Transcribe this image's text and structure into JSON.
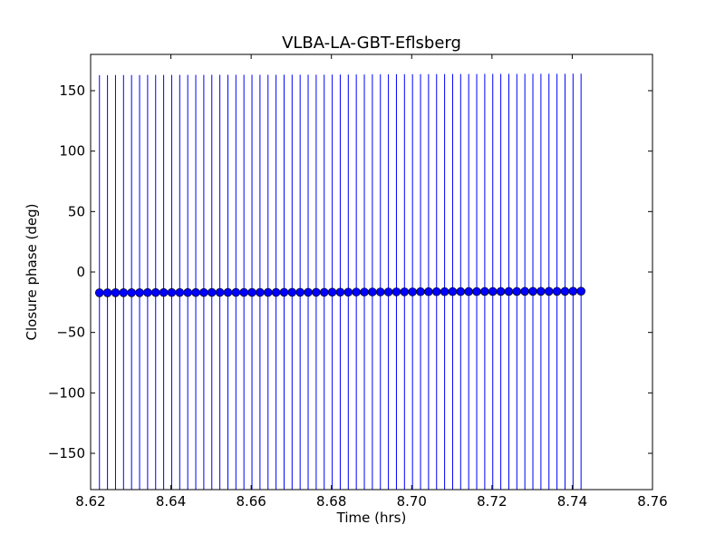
{
  "chart_data": {
    "type": "scatter",
    "title": "VLBA-LA-GBT-Eflsberg",
    "xlabel": "Time (hrs)",
    "ylabel": "Closure phase (deg)",
    "xlim": [
      8.62,
      8.76
    ],
    "ylim": [
      -180,
      180
    ],
    "xticks": [
      8.62,
      8.64,
      8.66,
      8.68,
      8.7,
      8.72,
      8.74,
      8.76
    ],
    "xtick_labels": [
      "8.62",
      "8.64",
      "8.66",
      "8.68",
      "8.70",
      "8.72",
      "8.74",
      "8.76"
    ],
    "yticks": [
      -150,
      -100,
      -50,
      0,
      50,
      100,
      150
    ],
    "ytick_labels": [
      "−150",
      "−100",
      "−50",
      "0",
      "50",
      "100",
      "150"
    ],
    "grid": false,
    "marker_color": "#0000ff",
    "series": [
      {
        "x": [
          8.6222,
          8.6242,
          8.6262,
          8.6282,
          8.6302,
          8.6322,
          8.6342,
          8.6362,
          8.6382,
          8.6402,
          8.6422,
          8.6442,
          8.6462,
          8.6482,
          8.6502,
          8.6522,
          8.6542,
          8.6562,
          8.6582,
          8.6602,
          8.6622,
          8.6642,
          8.6662,
          8.6682,
          8.6702,
          8.6722,
          8.6742,
          8.6762,
          8.6782,
          8.6802,
          8.6822,
          8.6842,
          8.6862,
          8.6882,
          8.6902,
          8.6922,
          8.6942,
          8.6962,
          8.6982,
          8.7002,
          8.7022,
          8.7042,
          8.7062,
          8.7082,
          8.7102,
          8.7122,
          8.7142,
          8.7162,
          8.7182,
          8.7202,
          8.7222,
          8.7242,
          8.7262,
          8.7282,
          8.7302,
          8.7322,
          8.7342,
          8.7362,
          8.7382,
          8.7402,
          8.7422
        ],
        "y": [
          -17.2,
          -17.2,
          -17.1,
          -17.1,
          -17.1,
          -17.1,
          -17.0,
          -17.0,
          -17.0,
          -17.0,
          -17.0,
          -17.0,
          -17.0,
          -17.0,
          -16.9,
          -16.9,
          -16.9,
          -16.9,
          -16.9,
          -16.9,
          -16.9,
          -16.9,
          -16.9,
          -16.8,
          -16.8,
          -16.8,
          -16.8,
          -16.8,
          -16.8,
          -16.7,
          -16.7,
          -16.7,
          -16.6,
          -16.6,
          -16.5,
          -16.5,
          -16.5,
          -16.4,
          -16.4,
          -16.4,
          -16.3,
          -16.3,
          -16.3,
          -16.3,
          -16.2,
          -16.2,
          -16.2,
          -16.2,
          -16.1,
          -16.1,
          -16.1,
          -16.1,
          -16.1,
          -16.0,
          -16.0,
          -16.0,
          -16.0,
          -16.0,
          -16.0,
          -15.9,
          -15.9
        ],
        "yerr": [
          180,
          180,
          180,
          180,
          180,
          180,
          180,
          180,
          180,
          180,
          180,
          180,
          180,
          180,
          180,
          180,
          180,
          180,
          180,
          180,
          180,
          180,
          180,
          180,
          180,
          180,
          180,
          180,
          180,
          180,
          180,
          180,
          180,
          180,
          180,
          180,
          180,
          180,
          180,
          180,
          180,
          180,
          180,
          180,
          180,
          180,
          180,
          180,
          180,
          180,
          180,
          180,
          180,
          180,
          180,
          180,
          180,
          180,
          180,
          180,
          180
        ]
      }
    ]
  }
}
